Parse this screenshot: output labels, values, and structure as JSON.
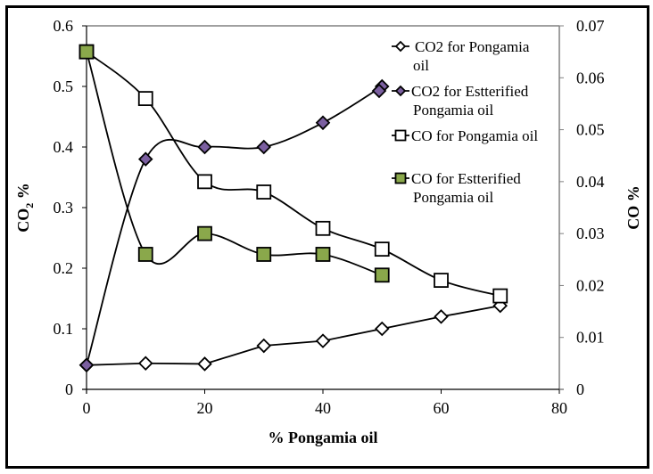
{
  "chart_data": {
    "type": "line",
    "title": "",
    "xlabel": "% Pongamia oil",
    "ylabel_left": "CO2 %",
    "ylabel_left_main": "CO",
    "ylabel_left_sub": "2",
    "ylabel_left_suffix": " %",
    "ylabel_right": "CO %",
    "xlim": [
      0,
      80
    ],
    "ylim_left": [
      0,
      0.6
    ],
    "ylim_right": [
      0,
      0.07
    ],
    "x_ticks": [
      "0",
      "20",
      "40",
      "60",
      "80"
    ],
    "x_tick_values": [
      0,
      20,
      40,
      60,
      80
    ],
    "y_left_ticks": [
      "0",
      "0.1",
      "0.2",
      "0.3",
      "0.4",
      "0.5",
      "0.6"
    ],
    "y_left_tick_values": [
      0,
      0.1,
      0.2,
      0.3,
      0.4,
      0.5,
      0.6
    ],
    "y_right_ticks": [
      "0",
      "0.01",
      "0.02",
      "0.03",
      "0.04",
      "0.05",
      "0.06",
      "0.07"
    ],
    "y_right_tick_values": [
      0,
      0.01,
      0.02,
      0.03,
      0.04,
      0.05,
      0.06,
      0.07
    ],
    "grid": false,
    "legend_position": "top-right",
    "series": [
      {
        "name": "CO2 for Pongamia oil",
        "legend_lines": [
          "CO2 for Pongamia",
          "oil"
        ],
        "axis": "left",
        "marker": "diamond",
        "fill": "#ffffff",
        "smooth": false,
        "x": [
          0,
          10,
          20,
          30,
          40,
          50,
          60,
          70
        ],
        "y": [
          0.04,
          0.043,
          0.042,
          0.072,
          0.08,
          0.1,
          0.12,
          0.138
        ]
      },
      {
        "name": "CO2 for Estterified Pongamia oil",
        "legend_lines": [
          "CO2 for Estterified",
          "Pongamia oil"
        ],
        "axis": "left",
        "marker": "diamond",
        "fill": "#7b5fa0",
        "smooth": true,
        "x": [
          0,
          10,
          20,
          30,
          40,
          50
        ],
        "y": [
          0.04,
          0.38,
          0.4,
          0.4,
          0.44,
          0.5
        ]
      },
      {
        "name": "CO for Pongamia oil",
        "legend_lines": [
          "CO for Pongamia oil"
        ],
        "axis": "right",
        "marker": "square",
        "fill": "#ffffff",
        "smooth": true,
        "x": [
          0,
          10,
          20,
          30,
          40,
          50,
          60,
          70
        ],
        "y": [
          0.065,
          0.056,
          0.04,
          0.038,
          0.031,
          0.027,
          0.021,
          0.018
        ]
      },
      {
        "name": "CO for Estterified Pongamia oil",
        "legend_lines": [
          "CO for Estterified",
          "Pongamia oil"
        ],
        "axis": "right",
        "marker": "square",
        "fill": "#8aa84b",
        "smooth": true,
        "x": [
          0,
          10,
          20,
          30,
          40,
          50
        ],
        "y": [
          0.065,
          0.026,
          0.03,
          0.026,
          0.026,
          0.022
        ]
      }
    ]
  },
  "colors": {
    "axis_left": "#000000",
    "axis_right_and_top": "#808080",
    "line": "#000000",
    "purple_marker": "#7b5fa0",
    "green_marker": "#8aa84b"
  }
}
